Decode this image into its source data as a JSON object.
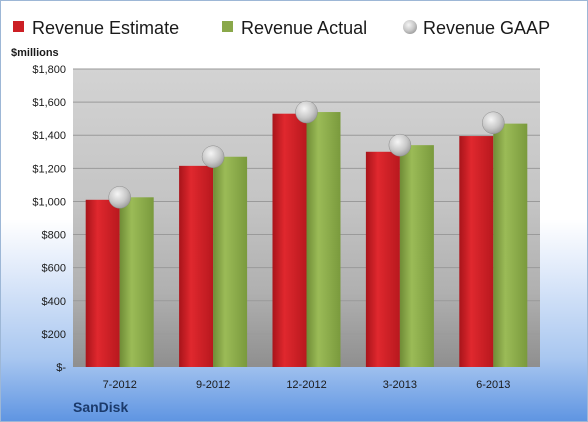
{
  "chart_data": {
    "type": "bar",
    "unit_label": "$millions",
    "brand_label": "SanDisk",
    "categories": [
      "7-2012",
      "9-2012",
      "12-2012",
      "3-2013",
      "6-2013"
    ],
    "series": [
      {
        "name": "Revenue Estimate",
        "kind": "bar",
        "color": "#cc1f24",
        "values": [
          1010,
          1215,
          1530,
          1300,
          1395
        ]
      },
      {
        "name": "Revenue Actual",
        "kind": "bar",
        "color": "#8aa84a",
        "values": [
          1025,
          1270,
          1540,
          1340,
          1470
        ]
      },
      {
        "name": "Revenue GAAP",
        "kind": "marker",
        "color": "#c8c8c8",
        "values": [
          1025,
          1270,
          1540,
          1340,
          1475
        ]
      }
    ],
    "ylim": [
      0,
      1800
    ],
    "yticks": [
      0,
      200,
      400,
      600,
      800,
      1000,
      1200,
      1400,
      1600,
      1800
    ],
    "ytick_labels": [
      "$-",
      "$200",
      "$400",
      "$600",
      "$800",
      "$1,000",
      "$1,200",
      "$1,400",
      "$1,600",
      "$1,800"
    ],
    "grid": true,
    "legend_position": "top"
  }
}
